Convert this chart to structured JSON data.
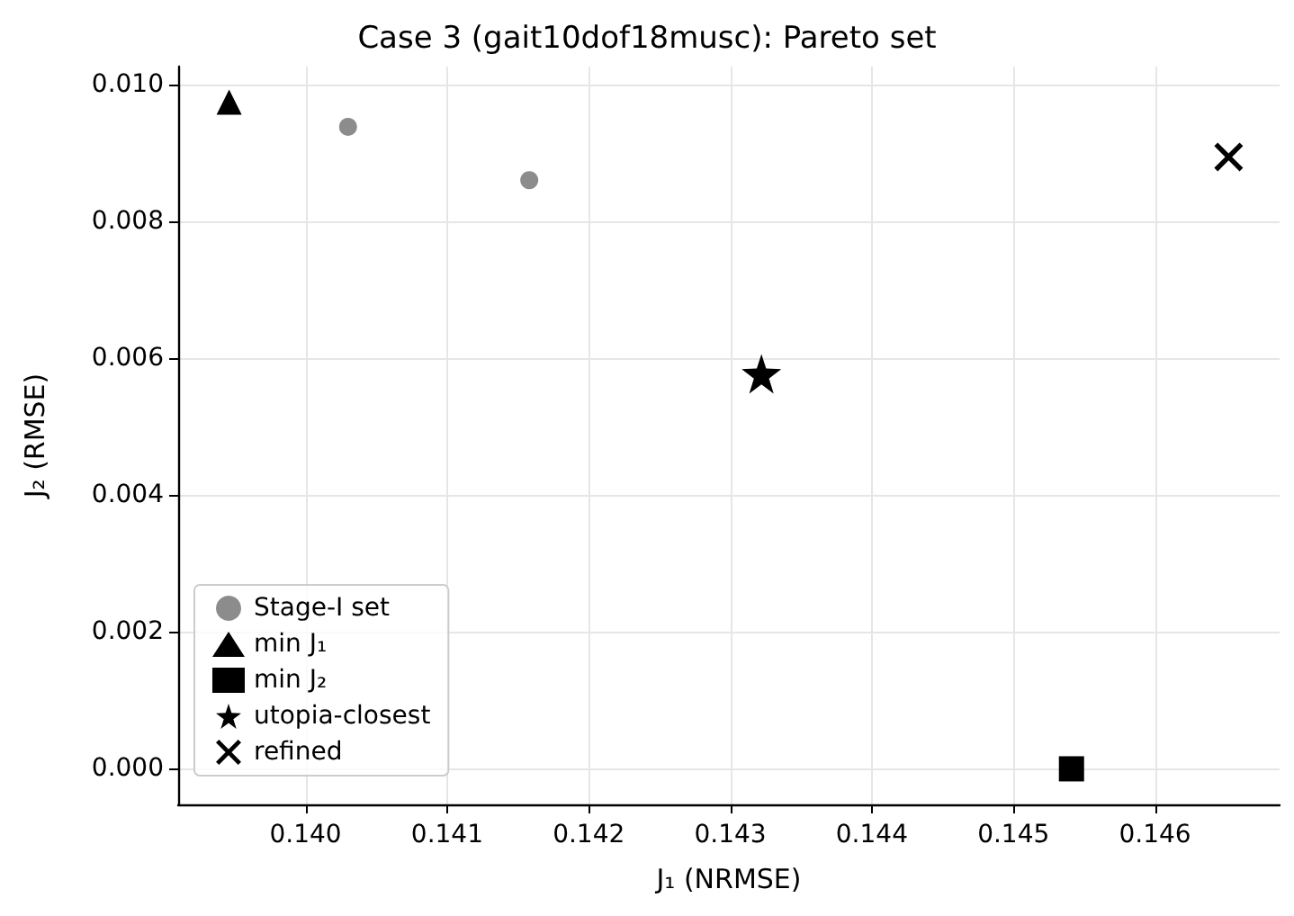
{
  "chart_data": {
    "type": "scatter",
    "title": "Case 3 (gait10dof18musc): Pareto set",
    "xlabel": "J₁ (NRMSE)",
    "ylabel": "J₂ (RMSE)",
    "xlim": [
      0.1391,
      0.14688
    ],
    "ylim": [
      -0.00052,
      0.01026
    ],
    "xticks": [
      {
        "value": 0.14,
        "label": "0.140"
      },
      {
        "value": 0.141,
        "label": "0.141"
      },
      {
        "value": 0.142,
        "label": "0.142"
      },
      {
        "value": 0.143,
        "label": "0.143"
      },
      {
        "value": 0.144,
        "label": "0.144"
      },
      {
        "value": 0.145,
        "label": "0.145"
      },
      {
        "value": 0.146,
        "label": "0.146"
      }
    ],
    "yticks": [
      {
        "value": 0,
        "label": "0.000"
      },
      {
        "value": 0.002,
        "label": "0.002"
      },
      {
        "value": 0.004,
        "label": "0.004"
      },
      {
        "value": 0.006,
        "label": "0.006"
      },
      {
        "value": 0.008,
        "label": "0.008"
      },
      {
        "value": 0.01,
        "label": "0.010"
      }
    ],
    "grid": true,
    "legend": "bottom left",
    "series": [
      {
        "name": "Stage-I set",
        "color": "#8c8c8c",
        "marker": "circle",
        "x": [
          0.1403,
          0.14158
        ],
        "values": [
          0.00938,
          0.0086
        ]
      },
      {
        "name": "min J₁",
        "color": "#000000",
        "marker": "triangle",
        "x": [
          0.13946
        ],
        "values": [
          0.00974
        ]
      },
      {
        "name": "min J₂",
        "color": "#000000",
        "marker": "square",
        "x": [
          0.14541
        ],
        "values": [
          0.0
        ]
      },
      {
        "name": "utopia-closest",
        "color": "#000000",
        "marker": "star",
        "x": [
          0.14322
        ],
        "values": [
          0.00577
        ]
      },
      {
        "name": "refined",
        "color": "#000000",
        "marker": "cross",
        "x": [
          0.14652
        ],
        "values": [
          0.00894
        ]
      }
    ]
  }
}
